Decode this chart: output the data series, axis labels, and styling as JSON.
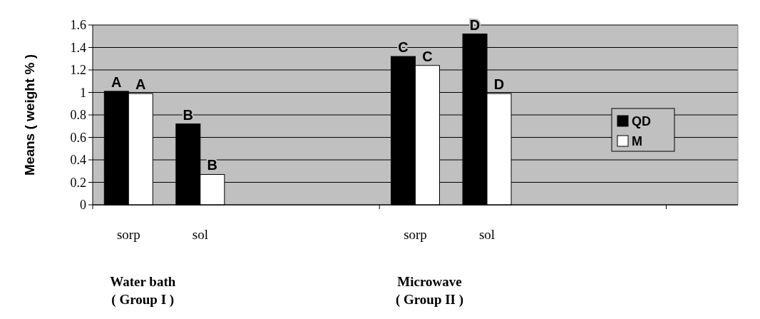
{
  "chart_data": {
    "type": "bar",
    "ylabel": "Means ( weight % )",
    "categories": [
      "sorp",
      "sol",
      null,
      null,
      "sorp",
      "sol",
      null,
      null,
      null
    ],
    "series": [
      {
        "name": "QD",
        "color": "#000000",
        "values": [
          1.01,
          0.72,
          null,
          null,
          1.32,
          1.52,
          null,
          null,
          null
        ],
        "value_labels": [
          "A",
          "B",
          null,
          null,
          "C",
          "D",
          null,
          null,
          null
        ]
      },
      {
        "name": "M",
        "color": "#ffffff",
        "values": [
          0.99,
          0.27,
          null,
          null,
          1.24,
          0.99,
          null,
          null,
          null
        ],
        "value_labels": [
          "A",
          "B",
          null,
          null,
          "C",
          "D",
          null,
          null,
          null
        ]
      }
    ],
    "ylim": [
      0,
      1.6
    ],
    "yticks": [
      0,
      0.2,
      0.4,
      0.6,
      0.8,
      1,
      1.2,
      1.4,
      1.6
    ],
    "grid": "y",
    "legend": "right",
    "annotations": [
      "Water bath\n( Group I )",
      "Microwave\n( Group II )"
    ]
  }
}
